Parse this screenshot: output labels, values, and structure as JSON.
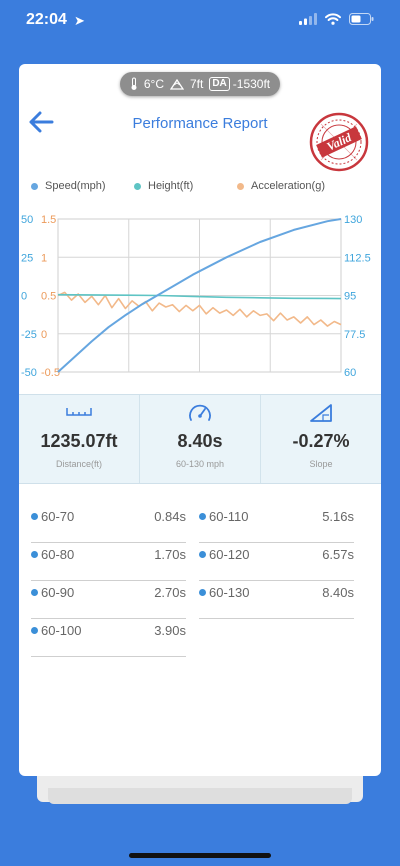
{
  "status_bar": {
    "time": "22:04"
  },
  "weather": {
    "temperature": "6°C",
    "elevation": "7ft",
    "da_label": "DA",
    "density_altitude": "-1530ft"
  },
  "header": {
    "title": "Performance Report",
    "stamp_text": "Valid"
  },
  "legend": [
    {
      "label": "Speed(mph)",
      "color": "#66a6e0"
    },
    {
      "label": "Height(ft)",
      "color": "#5ec4c4"
    },
    {
      "label": "Acceleration(g)",
      "color": "#f2b98a"
    }
  ],
  "chart_data": {
    "type": "line",
    "x_range": [
      0,
      8.4
    ],
    "axes": {
      "speed": {
        "ticks": [
          "50",
          "25",
          "0",
          "-25",
          "-50"
        ],
        "range": [
          -50,
          50
        ],
        "color": "#3fa5dc"
      },
      "accel": {
        "ticks": [
          "1.5",
          "1",
          "0.5",
          "0",
          "-0.5"
        ],
        "range": [
          -0.5,
          1.5
        ],
        "color": "#ec9a5a"
      },
      "right": {
        "ticks": [
          "130",
          "112.5",
          "95",
          "77.5",
          "60"
        ],
        "range": [
          60,
          130
        ],
        "color": "#3fa5dc"
      }
    },
    "series": [
      {
        "name": "Speed(mph)",
        "axis": "right",
        "color": "#66a6e0",
        "x": [
          0,
          0.5,
          1.0,
          1.5,
          2.0,
          2.5,
          3.0,
          3.5,
          4.0,
          5.0,
          6.0,
          7.0,
          8.0,
          8.4
        ],
        "y": [
          60,
          67,
          74,
          80.5,
          86,
          91,
          95.5,
          100,
          104.5,
          112.5,
          119.5,
          125,
          129,
          130
        ]
      },
      {
        "name": "Height(ft)",
        "axis": "speed",
        "color": "#5ec4c4",
        "x": [
          0,
          1,
          2,
          3,
          4,
          5,
          6,
          7,
          8,
          8.4
        ],
        "y": [
          0.5,
          0.4,
          0.2,
          0,
          -0.6,
          -1.2,
          -1.5,
          -1.8,
          -1.9,
          -2.0
        ]
      },
      {
        "name": "Acceleration(g)",
        "axis": "accel",
        "color": "#f2b98a",
        "x": [
          0,
          0.2,
          0.4,
          0.6,
          0.8,
          1.0,
          1.2,
          1.4,
          1.6,
          1.8,
          2.0,
          2.2,
          2.4,
          2.6,
          2.8,
          3.0,
          3.2,
          3.4,
          3.6,
          3.8,
          4.0,
          4.2,
          4.4,
          4.6,
          4.8,
          5.0,
          5.2,
          5.4,
          5.6,
          5.8,
          6.0,
          6.2,
          6.4,
          6.6,
          6.8,
          7.0,
          7.2,
          7.4,
          7.6,
          7.8,
          8.0,
          8.2,
          8.4
        ],
        "y": [
          0.5,
          0.54,
          0.44,
          0.52,
          0.41,
          0.49,
          0.38,
          0.5,
          0.34,
          0.46,
          0.33,
          0.43,
          0.36,
          0.42,
          0.3,
          0.4,
          0.35,
          0.38,
          0.29,
          0.37,
          0.3,
          0.37,
          0.26,
          0.34,
          0.27,
          0.31,
          0.24,
          0.32,
          0.22,
          0.3,
          0.24,
          0.26,
          0.17,
          0.27,
          0.18,
          0.22,
          0.14,
          0.22,
          0.12,
          0.18,
          0.1,
          0.16,
          0.12
        ]
      }
    ]
  },
  "stats": [
    {
      "icon": "ruler-icon",
      "value": "1235.07ft",
      "label": "Distance(ft)"
    },
    {
      "icon": "speedometer-icon",
      "value": "8.40s",
      "label": "60-130 mph"
    },
    {
      "icon": "slope-icon",
      "value": "-0.27%",
      "label": "Slope"
    }
  ],
  "splits": [
    {
      "range": "60-70",
      "time": "0.84s"
    },
    {
      "range": "60-110",
      "time": "5.16s"
    },
    {
      "range": "60-80",
      "time": "1.70s"
    },
    {
      "range": "60-120",
      "time": "6.57s"
    },
    {
      "range": "60-90",
      "time": "2.70s"
    },
    {
      "range": "60-130",
      "time": "8.40s"
    },
    {
      "range": "60-100",
      "time": "3.90s"
    }
  ]
}
